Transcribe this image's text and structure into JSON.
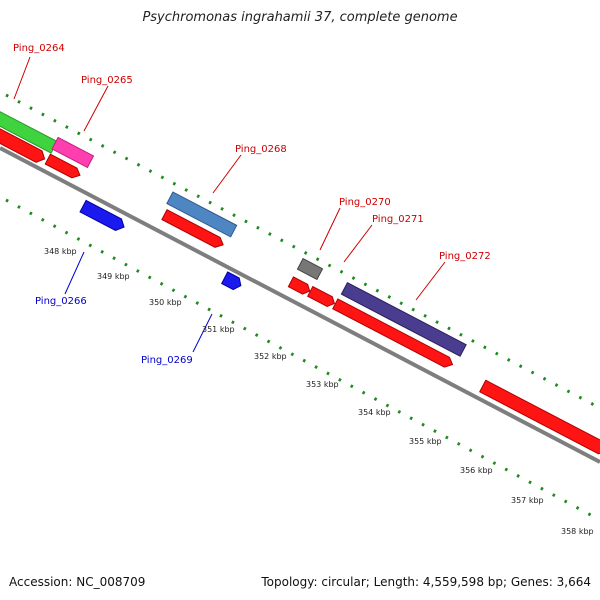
{
  "title": "Psychromonas ingrahamii 37, complete genome",
  "footer": {
    "accession": "Accession: NC_008709",
    "summary": "Topology: circular; Length: 4,559,598 bp; Genes: 3,664"
  },
  "colors": {
    "backbone": "#8a8a8a",
    "tick_dots": "#1f8a1f",
    "red_gene": "#ff1414",
    "green_gene": "#3fd43f",
    "pink_gene": "#ff3fb0",
    "steelblue_gene": "#4d86c3",
    "navy_gene": "#4a3d8f",
    "blue_gene": "#1a1aee",
    "gray_gene": "#777777",
    "label_red": "#cc0000",
    "label_blue": "#0000cc"
  },
  "gene_labels": [
    {
      "text": "Ping_0264",
      "color": "red"
    },
    {
      "text": "Ping_0265",
      "color": "red"
    },
    {
      "text": "Ping_0268",
      "color": "red"
    },
    {
      "text": "Ping_0270",
      "color": "red"
    },
    {
      "text": "Ping_0271",
      "color": "red"
    },
    {
      "text": "Ping_0272",
      "color": "red"
    },
    {
      "text": "Ping_0266",
      "color": "blue"
    },
    {
      "text": "Ping_0269",
      "color": "blue"
    }
  ],
  "kbp_ticks": [
    "348 kbp",
    "349 kbp",
    "350 kbp",
    "351 kbp",
    "352 kbp",
    "353 kbp",
    "354 kbp",
    "355 kbp",
    "356 kbp",
    "357 kbp",
    "358 kbp"
  ]
}
